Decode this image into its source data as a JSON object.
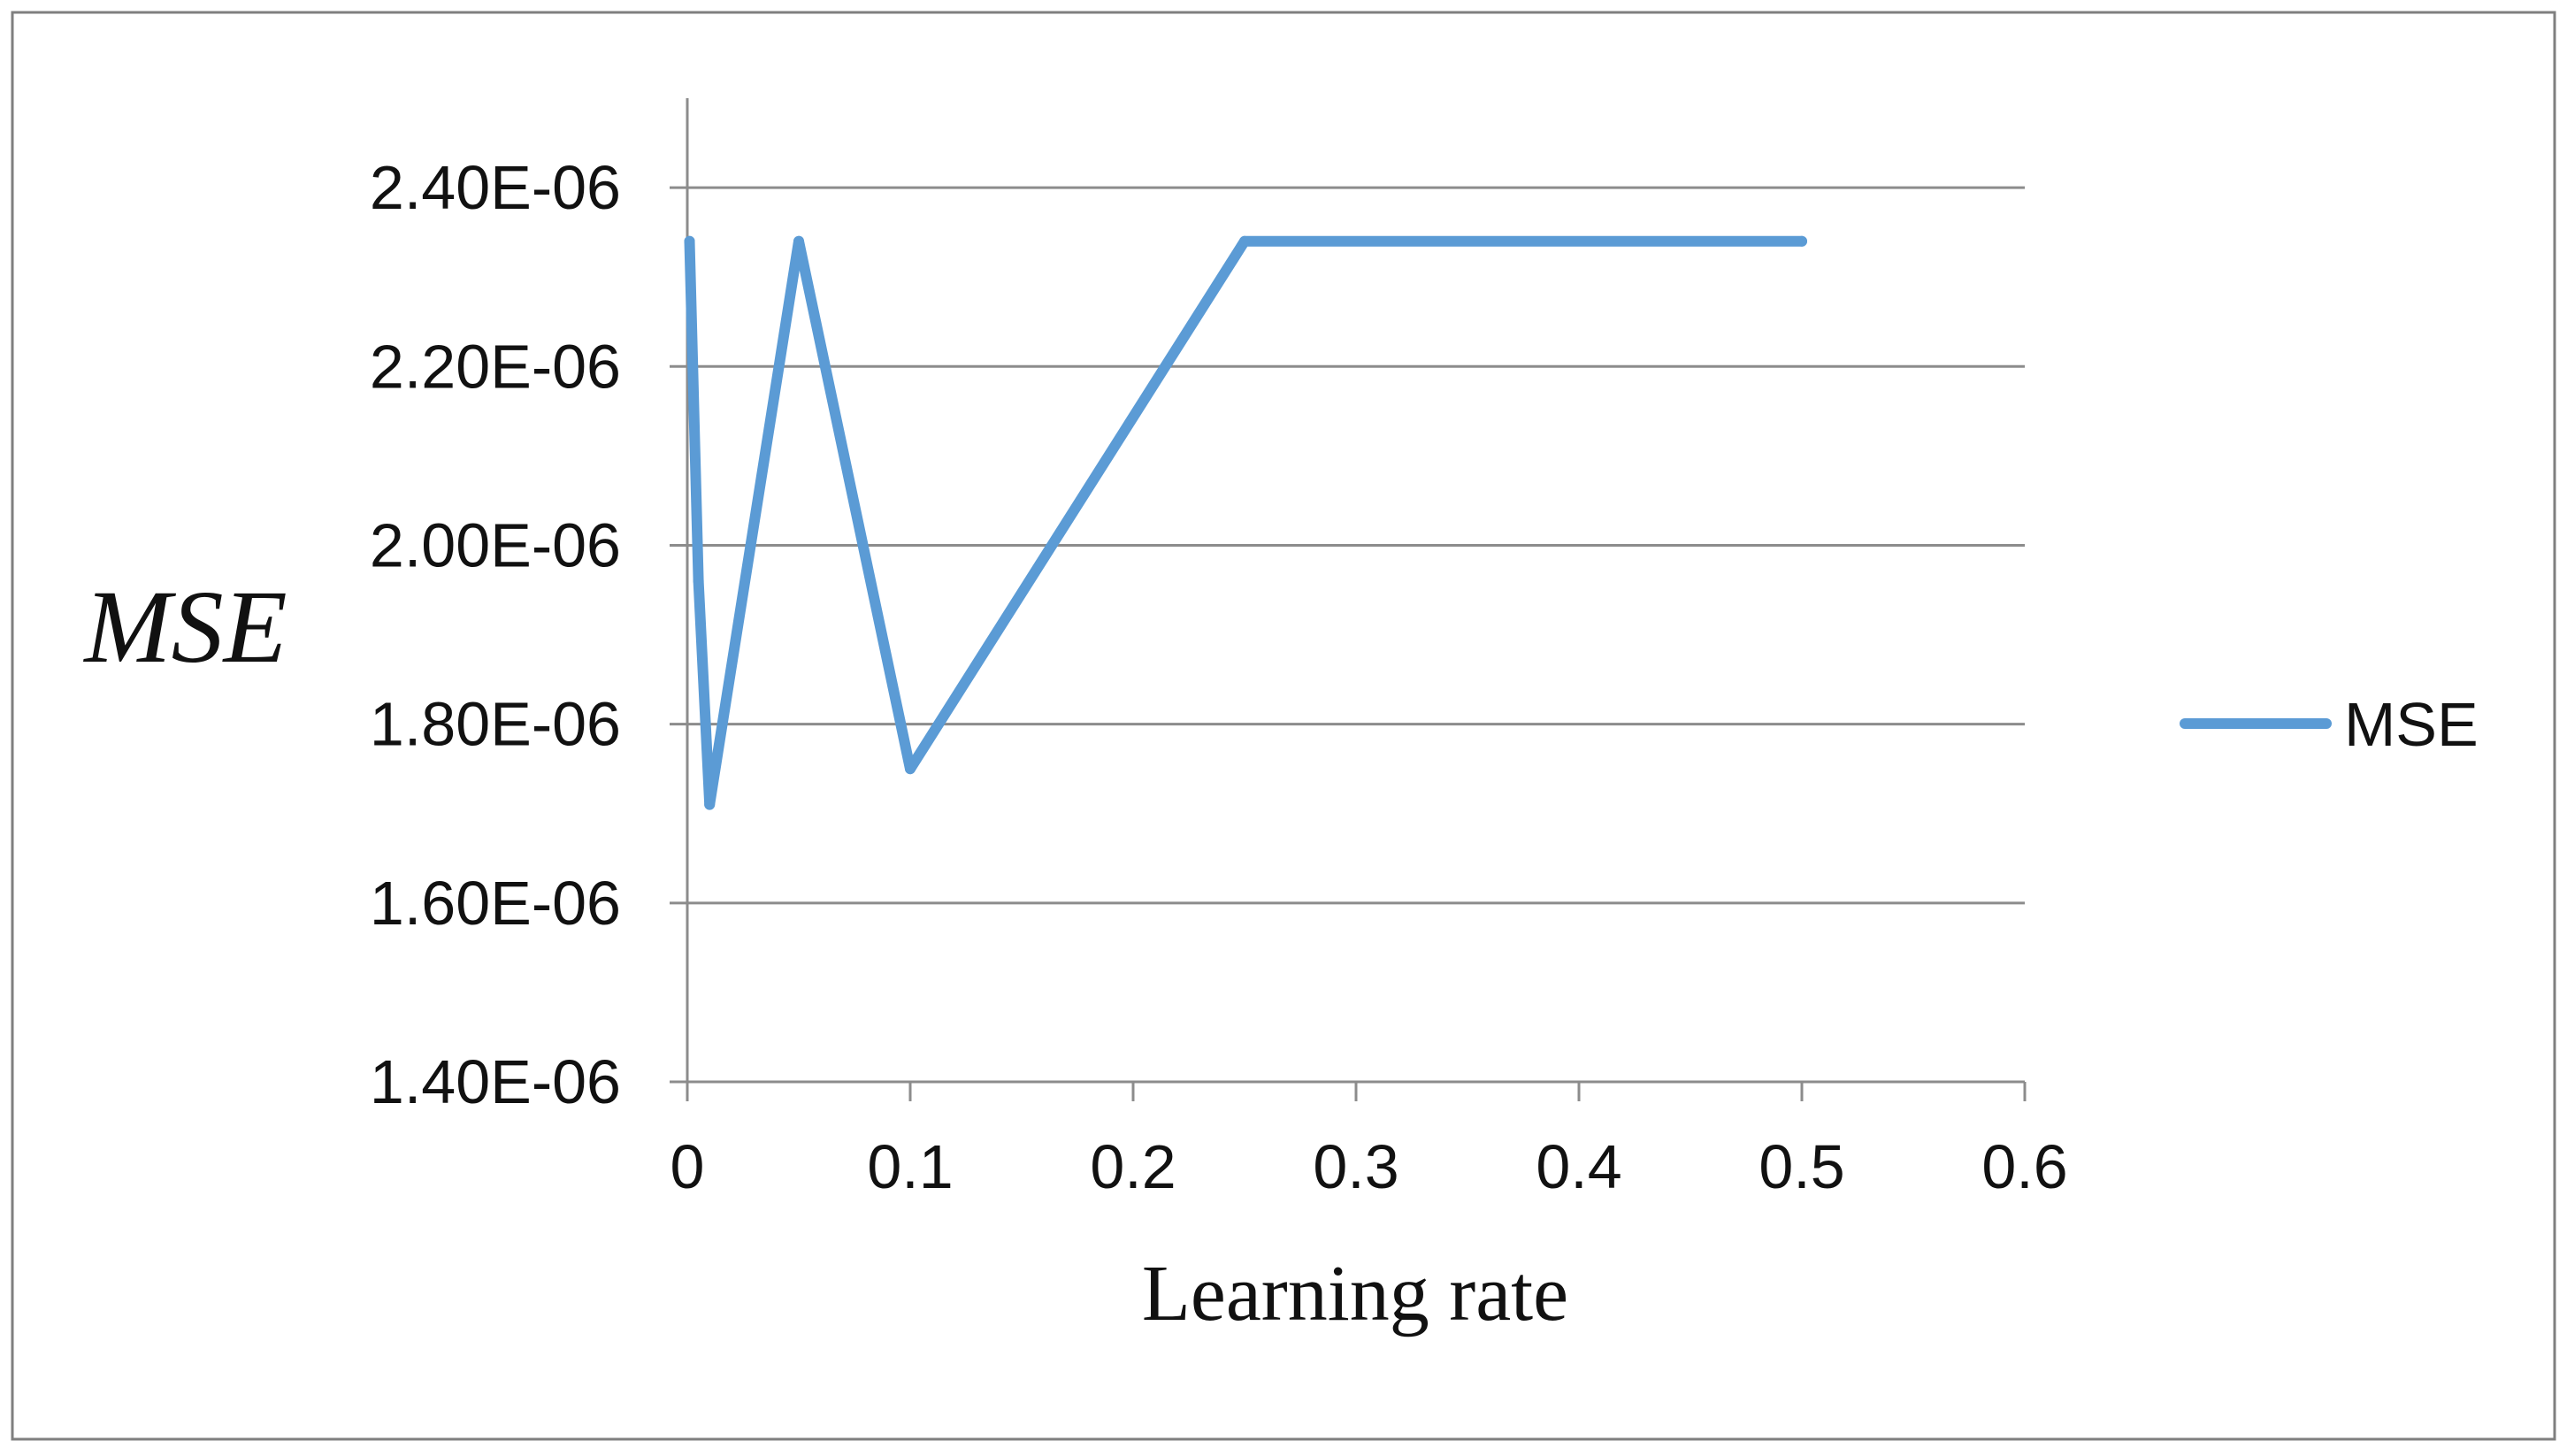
{
  "chart_data": {
    "type": "line",
    "title": "",
    "xlabel": "Learning rate",
    "ylabel": "MSE",
    "xlim": [
      0,
      0.6
    ],
    "ylim": [
      1.4e-06,
      2.5e-06
    ],
    "x_ticks": [
      0,
      0.1,
      0.2,
      0.3,
      0.4,
      0.5,
      0.6
    ],
    "x_tick_labels": [
      "0",
      "0.1",
      "0.2",
      "0.3",
      "0.4",
      "0.5",
      "0.6"
    ],
    "y_ticks": [
      1.4e-06,
      1.6e-06,
      1.8e-06,
      2e-06,
      2.2e-06,
      2.4e-06
    ],
    "y_tick_labels": [
      "1.40E-06",
      "1.60E-06",
      "1.80E-06",
      "2.00E-06",
      "2.20E-06",
      "2.40E-06"
    ],
    "grid": "horizontal",
    "legend": "right",
    "series": [
      {
        "name": "MSE",
        "color": "#5b9bd5",
        "x": [
          0.001,
          0.005,
          0.01,
          0.05,
          0.1,
          0.25,
          0.5
        ],
        "y": [
          2.34e-06,
          1.96e-06,
          1.71e-06,
          2.34e-06,
          1.75e-06,
          2.34e-06,
          2.34e-06
        ]
      }
    ]
  }
}
